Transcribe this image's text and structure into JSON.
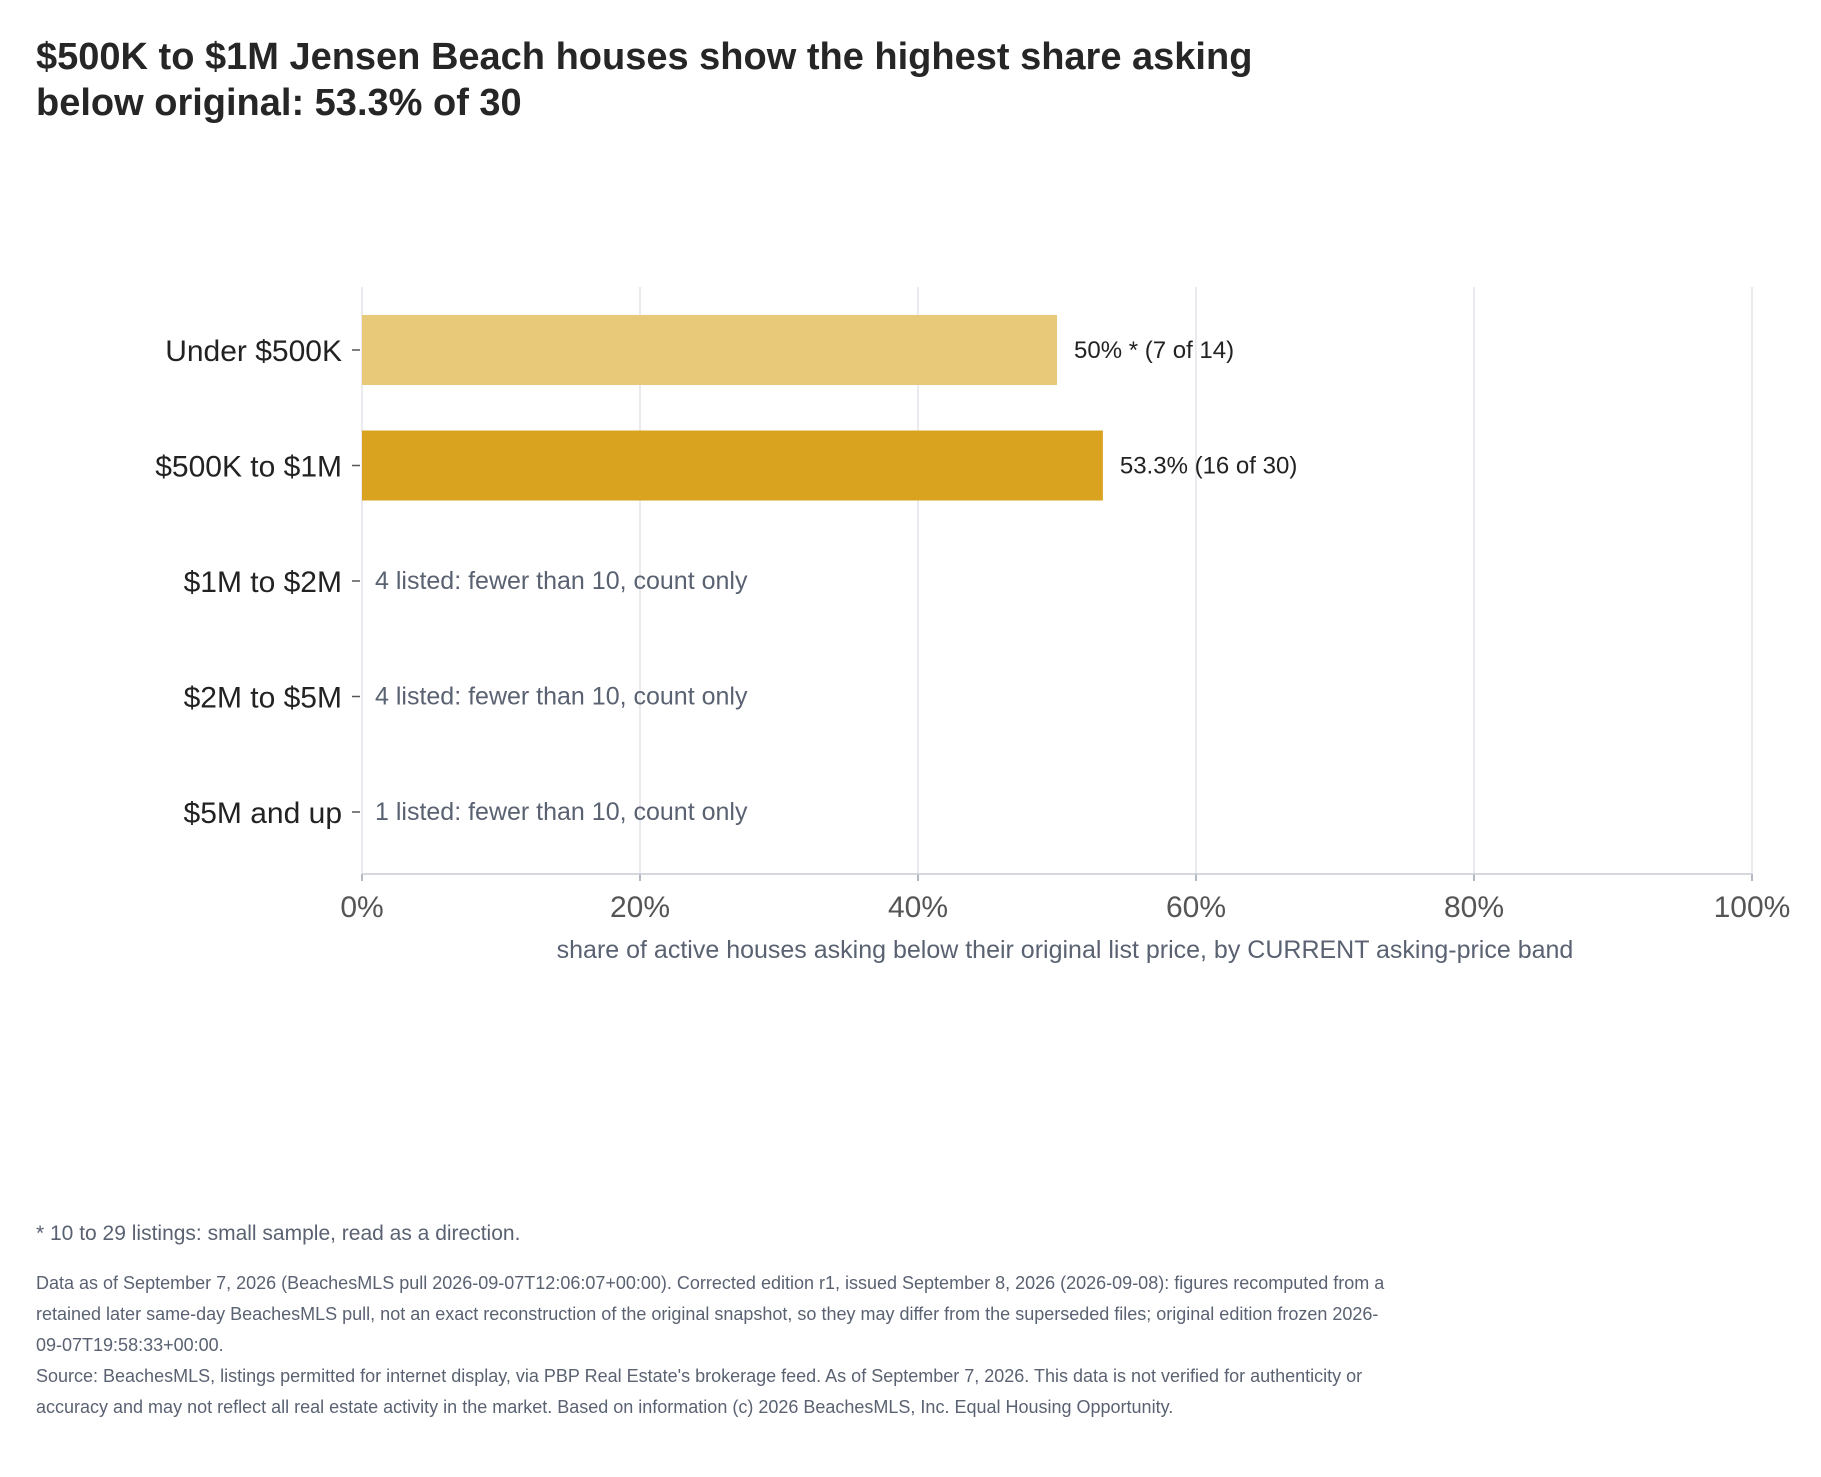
{
  "title": "$500K to $1M Jensen Beach houses show the highest share asking below original: 53.3% of 30",
  "chart_data": {
    "type": "bar",
    "orientation": "horizontal",
    "categories": [
      "Under $500K",
      "$500K to $1M",
      "$1M to $2M",
      "$2M to $5M",
      "$5M and up"
    ],
    "values": [
      50,
      53.3,
      null,
      null,
      null
    ],
    "counts": [
      {
        "below": 7,
        "total": 14
      },
      {
        "below": 16,
        "total": 30
      },
      {
        "below": null,
        "total": 4
      },
      {
        "below": null,
        "total": 4
      },
      {
        "below": null,
        "total": 1
      }
    ],
    "bar_labels": [
      "50% *  (7 of 14)",
      "53.3%  (16 of 30)",
      "4 listed: fewer than 10, count only",
      "4 listed: fewer than 10, count only",
      "1 listed: fewer than 10, count only"
    ],
    "bar_colors": [
      "#e8c97a",
      "#d9a21f",
      null,
      null,
      null
    ],
    "xlim": [
      0,
      100
    ],
    "xticks": [
      0,
      20,
      40,
      60,
      80,
      100
    ],
    "xtick_labels": [
      "0%",
      "20%",
      "40%",
      "60%",
      "80%",
      "100%"
    ],
    "xlabel": "share of active houses asking below their original list price, by CURRENT asking-price band",
    "grid": "vertical"
  },
  "footnote": "* 10 to 29 listings: small sample, read as a direction.",
  "notes": [
    "Data as of September 7, 2026 (BeachesMLS pull 2026-09-07T12:06:07+00:00). Corrected edition r1, issued September 8, 2026 (2026-09-08): figures recomputed from a retained later same-day BeachesMLS pull, not an exact reconstruction of the original snapshot, so they may differ from the superseded files; original edition frozen 2026-09-07T19:58:33+00:00.",
    "Source: BeachesMLS, listings permitted for internet display, via PBP Real Estate's brokerage feed. As of September 7, 2026. This data is not verified for authenticity or accuracy and may not reflect all real estate activity in the market. Based on information (c) 2026 BeachesMLS, Inc. Equal Housing Opportunity."
  ],
  "colors": {
    "grid": "#e4e4ea",
    "muted_label": "#5a6272",
    "text": "#222222"
  }
}
